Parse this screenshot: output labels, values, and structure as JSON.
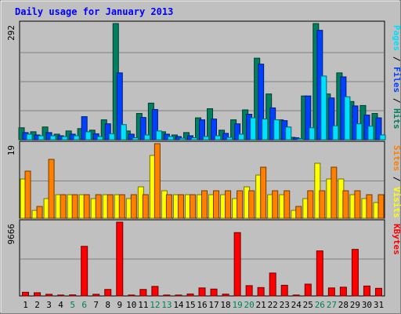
{
  "chart_data": {
    "type": "bar",
    "title": "Daily usage for January 2013",
    "categories": [
      "1",
      "2",
      "3",
      "4",
      "5",
      "6",
      "7",
      "8",
      "9",
      "10",
      "11",
      "12",
      "13",
      "14",
      "15",
      "16",
      "17",
      "18",
      "19",
      "20",
      "21",
      "22",
      "23",
      "24",
      "25",
      "26",
      "27",
      "28",
      "29",
      "30",
      "31"
    ],
    "weekend_days": [
      "5",
      "6",
      "12",
      "13",
      "19",
      "20",
      "26",
      "27"
    ],
    "panels": [
      {
        "id": "hits",
        "scale_label": "292",
        "ylim": [
          0,
          292
        ],
        "right_label": [
          {
            "text": "Pages",
            "color": "#00e0ff"
          },
          {
            "text": " / ",
            "color": "#000000"
          },
          {
            "text": "Files",
            "color": "#0040ff"
          },
          {
            "text": " / ",
            "color": "#000000"
          },
          {
            "text": "Hits",
            "color": "#008060"
          }
        ],
        "series": [
          {
            "name": "Hits",
            "color": "#008060",
            "values": [
              30,
              20,
              32,
              14,
              22,
              28,
              24,
              50,
              292,
              22,
              66,
              92,
              20,
              12,
              18,
              55,
              78,
              24,
              50,
              75,
              205,
              115,
              50,
              6,
              110,
              292,
              115,
              168,
              96,
              86,
              66
            ]
          },
          {
            "name": "Files",
            "color": "#0040ff",
            "values": [
              18,
              12,
              18,
              10,
              14,
              58,
              15,
              40,
              168,
              14,
              56,
              76,
              14,
              8,
              10,
              50,
              52,
              16,
              40,
              64,
              190,
              80,
              48,
              5,
              110,
              275,
              105,
              158,
              85,
              62,
              55
            ]
          },
          {
            "name": "Pages",
            "color": "#00e0ff",
            "values": [
              14,
              10,
              10,
              8,
              10,
              20,
              8,
              15,
              38,
              5,
              12,
              22,
              8,
              4,
              5,
              8,
              10,
              6,
              14,
              55,
              52,
              50,
              32,
              3,
              30,
              160,
              35,
              108,
              40,
              34,
              12
            ]
          }
        ]
      },
      {
        "id": "visits",
        "scale_label": "19",
        "ylim": [
          0,
          19
        ],
        "right_label": [
          {
            "text": "Sites",
            "color": "#ff8000"
          },
          {
            "text": " / ",
            "color": "#000000"
          },
          {
            "text": "Visits",
            "color": "#ffff00"
          }
        ],
        "series": [
          {
            "name": "Visits",
            "color": "#ffff00",
            "values": [
              10,
              2,
              5,
              6,
              6,
              6,
              5,
              6,
              6,
              5,
              8,
              16,
              7,
              6,
              6,
              6,
              6,
              6,
              5,
              8,
              11,
              6,
              6,
              2,
              5,
              14,
              10,
              10,
              6,
              5,
              4
            ]
          },
          {
            "name": "Sites",
            "color": "#ff8000",
            "values": [
              12,
              3,
              15,
              6,
              6,
              6,
              6,
              6,
              6,
              6,
              6,
              19,
              6,
              6,
              6,
              7,
              7,
              7,
              7,
              7,
              13,
              7,
              7,
              3,
              7,
              7,
              13,
              7,
              7,
              6,
              6
            ]
          }
        ]
      },
      {
        "id": "kbytes",
        "scale_label": "9666",
        "ylim": [
          0,
          9666
        ],
        "right_label": [
          {
            "text": "KBytes",
            "color": "#ff0000"
          }
        ],
        "series": [
          {
            "name": "KBytes",
            "color": "#ff0000",
            "values": [
              480,
              420,
              220,
              120,
              140,
              6500,
              220,
              850,
              9666,
              120,
              850,
              1250,
              120,
              120,
              260,
              1050,
              900,
              240,
              8300,
              1350,
              1100,
              3000,
              1400,
              120,
              1550,
              5900,
              1050,
              1150,
              6100,
              1300,
              1000
            ]
          }
        ]
      }
    ]
  }
}
